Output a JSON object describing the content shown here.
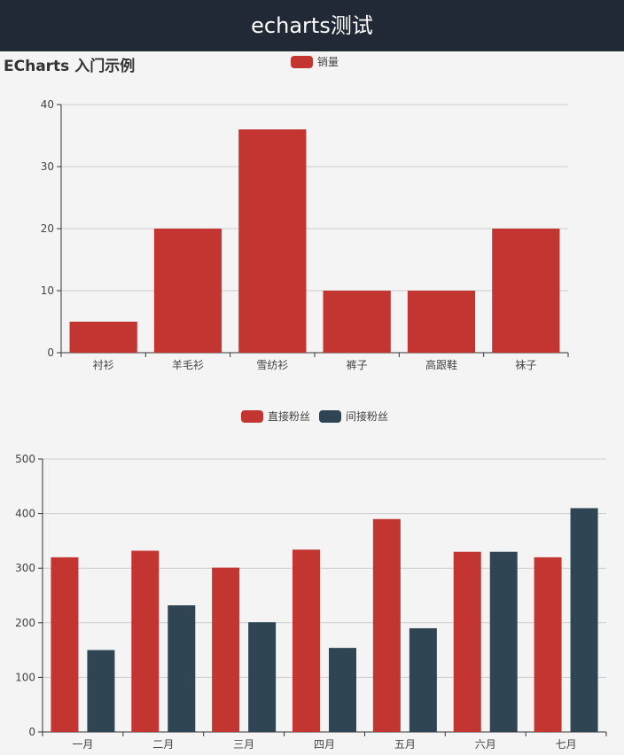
{
  "header": {
    "title": "echarts测试"
  },
  "page": {
    "title": "ECharts 入门示例"
  },
  "colors": {
    "primary": "#c23531",
    "secondary": "#2f4554",
    "header_bg": "#212936",
    "page_bg": "#f4f4f4"
  },
  "chart_data": [
    {
      "type": "bar",
      "title": "",
      "categories": [
        "衬衫",
        "羊毛衫",
        "雪纺衫",
        "裤子",
        "高跟鞋",
        "袜子"
      ],
      "series": [
        {
          "name": "销量",
          "values": [
            5,
            20,
            36,
            10,
            10,
            20
          ]
        }
      ],
      "ylim": [
        0,
        40
      ],
      "yticks": [
        0,
        10,
        20,
        30,
        40
      ],
      "grid": true,
      "legend": "top-center"
    },
    {
      "type": "bar",
      "title": "",
      "categories": [
        "一月",
        "二月",
        "三月",
        "四月",
        "五月",
        "六月",
        "七月"
      ],
      "series": [
        {
          "name": "直接粉丝",
          "values": [
            320,
            332,
            301,
            334,
            390,
            330,
            320
          ]
        },
        {
          "name": "间接粉丝",
          "values": [
            150,
            232,
            201,
            154,
            190,
            330,
            410
          ]
        }
      ],
      "ylim": [
        0,
        500
      ],
      "yticks": [
        0,
        100,
        200,
        300,
        400,
        500
      ],
      "grid": true,
      "legend": "top-center"
    }
  ]
}
